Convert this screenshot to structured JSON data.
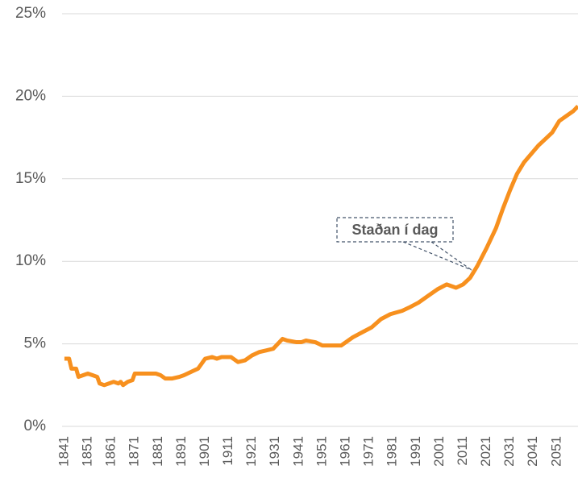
{
  "chart_data": {
    "type": "line",
    "annotation": "Staðan í dag",
    "x": [
      1841,
      1843,
      1844,
      1846,
      1847,
      1849,
      1851,
      1853,
      1855,
      1856,
      1858,
      1860,
      1862,
      1864,
      1865,
      1866,
      1868,
      1870,
      1871,
      1873,
      1876,
      1880,
      1882,
      1884,
      1887,
      1890,
      1892,
      1895,
      1898,
      1901,
      1904,
      1906,
      1908,
      1912,
      1915,
      1918,
      1921,
      1924,
      1927,
      1930,
      1932,
      1934,
      1936,
      1940,
      1942,
      1944,
      1948,
      1951,
      1954,
      1959,
      1961,
      1964,
      1968,
      1972,
      1976,
      1980,
      1985,
      1988,
      1992,
      1996,
      2000,
      2004,
      2008,
      2011,
      2014,
      2017,
      2021,
      2025,
      2028,
      2031,
      2034,
      2037,
      2040,
      2043,
      2046,
      2049,
      2052,
      2055,
      2058,
      2060
    ],
    "series": [
      {
        "color": "#f7901e",
        "values": [
          4.1,
          4.1,
          3.5,
          3.5,
          3.0,
          3.1,
          3.2,
          3.1,
          3.0,
          2.6,
          2.5,
          2.6,
          2.7,
          2.6,
          2.7,
          2.5,
          2.7,
          2.8,
          3.2,
          3.2,
          3.2,
          3.2,
          3.1,
          2.9,
          2.9,
          3.0,
          3.1,
          3.3,
          3.5,
          4.1,
          4.2,
          4.1,
          4.2,
          4.2,
          3.9,
          4.0,
          4.3,
          4.5,
          4.6,
          4.7,
          5.0,
          5.3,
          5.2,
          5.1,
          5.1,
          5.2,
          5.1,
          4.9,
          4.9,
          4.9,
          5.1,
          5.4,
          5.7,
          6.0,
          6.5,
          6.8,
          7.0,
          7.2,
          7.5,
          7.9,
          8.3,
          8.6,
          8.4,
          8.6,
          9.0,
          9.7,
          10.8,
          12.0,
          13.2,
          14.3,
          15.3,
          16.0,
          16.5,
          17.0,
          17.4,
          17.8,
          18.5,
          18.8,
          19.1,
          19.4
        ]
      }
    ],
    "xlim": [
      1840,
      2060
    ],
    "xticks": [
      1841,
      1851,
      1861,
      1871,
      1881,
      1891,
      1901,
      1911,
      1921,
      1931,
      1941,
      1951,
      1961,
      1971,
      1981,
      1991,
      2001,
      2011,
      2021,
      2031,
      2041,
      2051
    ],
    "ylim": [
      0,
      25
    ],
    "yticks": [
      {
        "value": 0,
        "label": "0%"
      },
      {
        "value": 5,
        "label": "5%"
      },
      {
        "value": 10,
        "label": "10%"
      },
      {
        "value": 15,
        "label": "15%"
      },
      {
        "value": 20,
        "label": "20%"
      },
      {
        "value": 25,
        "label": "25%"
      }
    ],
    "grid": true
  }
}
